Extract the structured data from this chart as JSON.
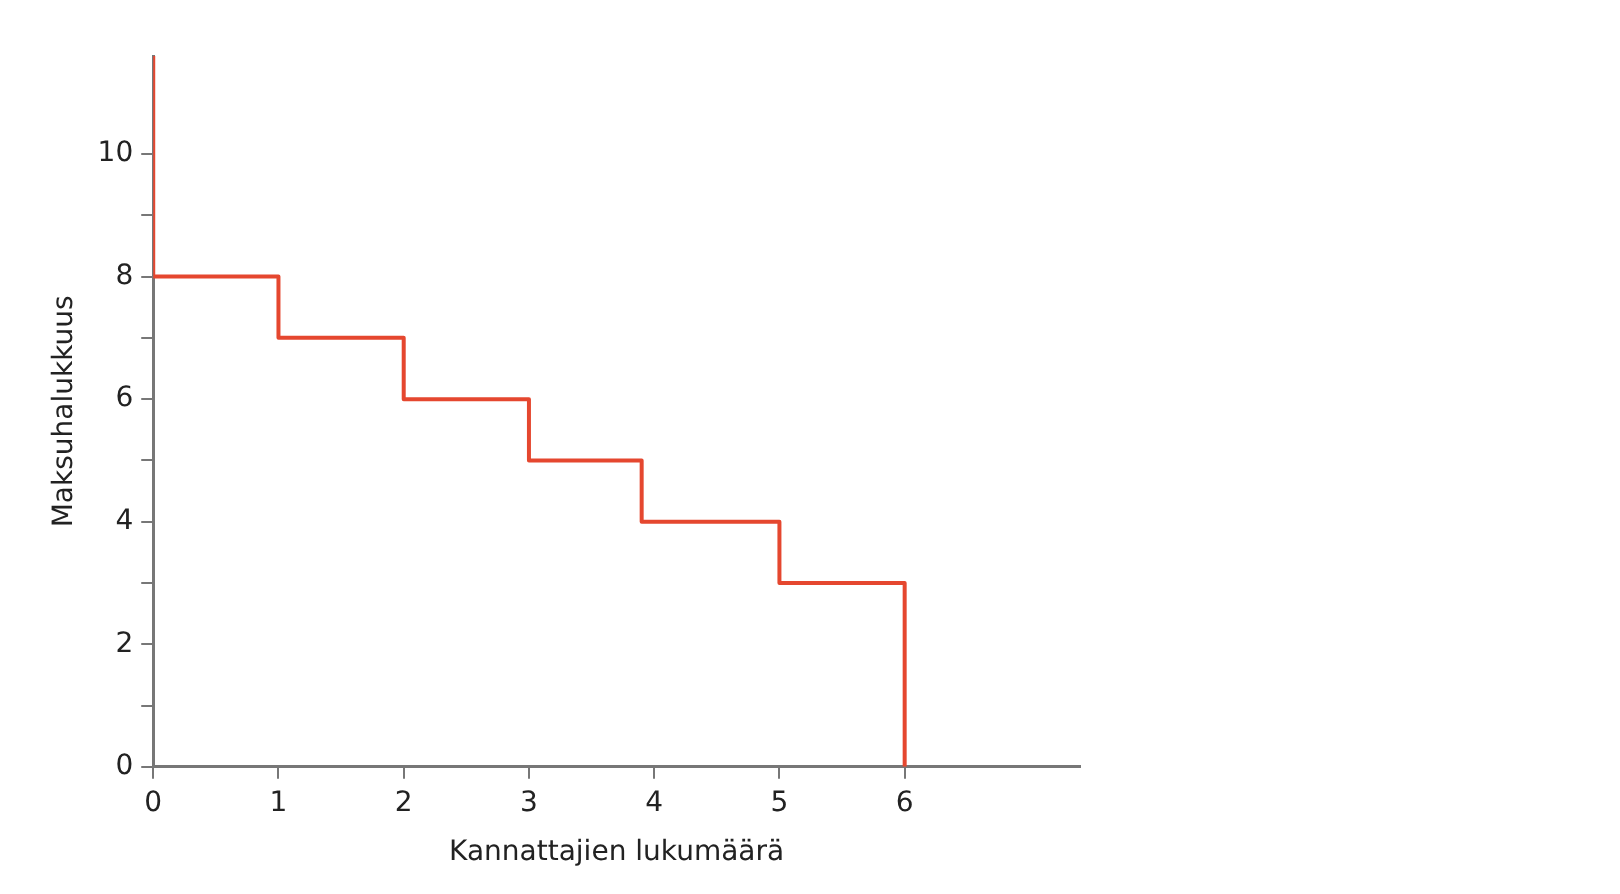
{
  "chart_data": {
    "type": "step",
    "xlabel": "Kannattajien lukumäärä",
    "ylabel": "Maksuhalukkuus",
    "x": [
      0,
      0,
      1,
      2,
      3,
      3.9,
      5,
      6
    ],
    "series": [
      {
        "color": "#e5472f",
        "values": [
          11.6,
          8,
          7,
          6,
          5,
          4,
          3,
          0
        ]
      }
    ],
    "xlim": [
      0,
      7.4
    ],
    "xticks": [
      0,
      1,
      2,
      3,
      4,
      5,
      6
    ],
    "ylim": [
      0,
      11.6
    ],
    "yticks": [
      0,
      {
        "value": 1,
        "label": null
      },
      2,
      {
        "value": 3,
        "label": null
      },
      4,
      {
        "value": 5,
        "label": null
      },
      6,
      {
        "value": 7,
        "label": null
      },
      8,
      {
        "value": 9,
        "label": null
      },
      10
    ],
    "grid": false,
    "legend": false,
    "marker": "none",
    "line_style": "solid"
  }
}
